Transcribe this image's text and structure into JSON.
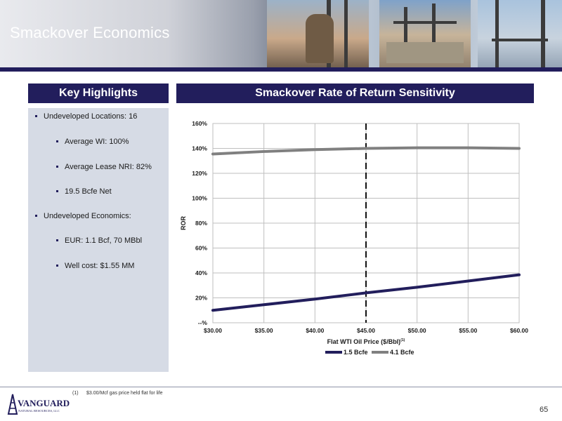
{
  "header": {
    "title": "Smackover Economics"
  },
  "left": {
    "heading": "Key Highlights",
    "bullets": [
      {
        "text": "Undeveloped Locations: 16",
        "level": 1
      },
      {
        "text": "Average WI: 100%",
        "level": 2
      },
      {
        "text": "Average Lease NRI: 82%",
        "level": 2
      },
      {
        "text": "19.5 Bcfe Net",
        "level": 2
      },
      {
        "text": "Undeveloped Economics:",
        "level": 1
      },
      {
        "text": "EUR: 1.1 Bcf, 70 MBbl",
        "level": 2
      },
      {
        "text": "Well cost: $1.55 MM",
        "level": 2
      }
    ]
  },
  "chart_heading": "Smackover Rate of Return Sensitivity",
  "chart_data": {
    "type": "line",
    "x": [
      30,
      35,
      40,
      45,
      50,
      55,
      60
    ],
    "x_tick_labels": [
      "$30.00",
      "$35.00",
      "$40.00",
      "$45.00",
      "$50.00",
      "$55.00",
      "$60.00"
    ],
    "xlim": [
      30,
      60
    ],
    "y_tick_labels": [
      "--%",
      "20%",
      "40%",
      "60%",
      "80%",
      "100%",
      "120%",
      "140%",
      "160%"
    ],
    "ylim": [
      0,
      160
    ],
    "xlabel": "Flat WTI Oil Price ($/Bbl)",
    "xlabel_superscript": "(1)",
    "ylabel": "ROR",
    "grid": true,
    "legend_placement": "bottom",
    "reference_line_x": 45,
    "series": [
      {
        "name": "1.5 Bcfe",
        "color": "#221e5c",
        "values": [
          10,
          14.5,
          19,
          24,
          28.5,
          33.5,
          38.5
        ]
      },
      {
        "name": "4.1 Bcfe",
        "color": "#808080",
        "values": [
          135.5,
          137.5,
          139,
          140,
          140.5,
          140.5,
          140
        ]
      }
    ]
  },
  "footnote": {
    "mark": "(1)",
    "text": "$3.00/Mcf gas price held flat for life"
  },
  "logo": {
    "name": "VANGUARD",
    "tagline": "NATURAL RESOURCES, LLC",
    "primary_color": "#221e5c"
  },
  "page_number": "65"
}
